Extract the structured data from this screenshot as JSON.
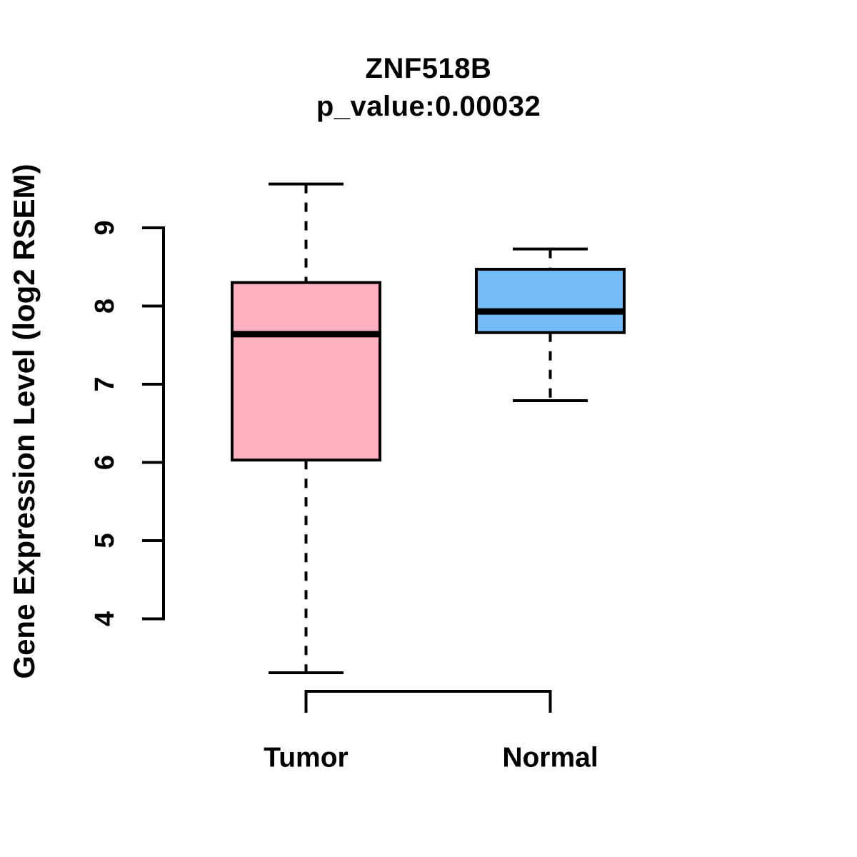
{
  "chart_data": {
    "type": "boxplot",
    "title": "ZNF518B",
    "subtitle": "p_value:0.00032",
    "ylabel": "Gene Expression Level (log2 RSEM)",
    "y_axis": {
      "ticks": [
        9,
        8,
        7,
        6,
        5,
        4
      ],
      "ticks_shown_range": [
        4,
        9
      ],
      "grid": false
    },
    "categories": [
      "Tumor",
      "Normal"
    ],
    "line_color": "#000000",
    "groups": [
      {
        "label": "Tumor",
        "fill_color": "#FFB0C1",
        "stats": {
          "whisker_low": 3.31,
          "q1": 6.03,
          "median": 7.64,
          "q3": 8.3,
          "whisker_high": 9.56
        }
      },
      {
        "label": "Normal",
        "fill_color": "#74BCF8",
        "stats": {
          "whisker_low": 6.79,
          "q1": 7.66,
          "median": 7.93,
          "q3": 8.47,
          "whisker_high": 8.73
        }
      }
    ]
  }
}
